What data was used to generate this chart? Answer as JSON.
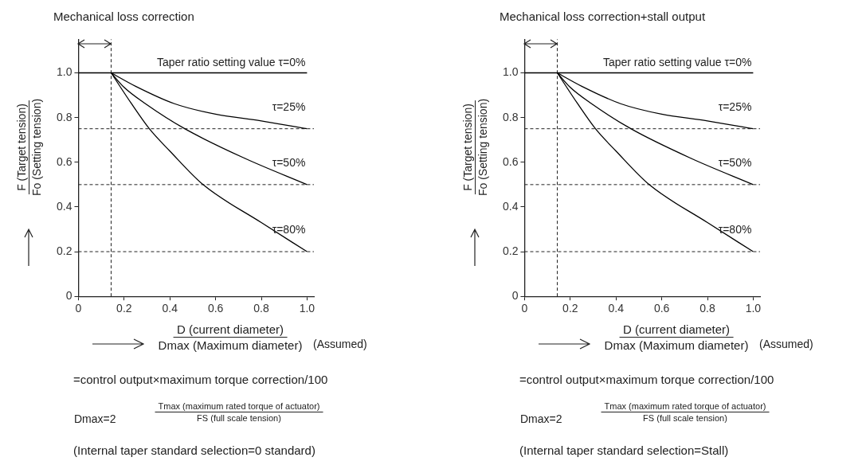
{
  "chart_data": [
    {
      "type": "line",
      "title": "Mechanical loss correction",
      "xlabel": "D (current diameter)\nDmax (Maximum diameter)",
      "ylabel": "F (Target tension)\nFo (Setting tension)",
      "annotations": [
        "(Assumed)",
        "=control output×maximum torque correction/100",
        "Dmax=2",
        "Tmax (maximum rated torque of actuator)\nFS (full scale tension)",
        "(Internal taper standard selection=0 standard)"
      ],
      "xlim": [
        0,
        1.03
      ],
      "ylim": [
        0,
        1.15
      ],
      "xticks": [
        0,
        0.2,
        0.4,
        0.6,
        0.8,
        {
          "value": 1,
          "label": "1.0"
        }
      ],
      "yticks": [
        0,
        0.2,
        0.4,
        0.6,
        0.8,
        {
          "value": 1,
          "label": "1.0"
        }
      ],
      "grid": false,
      "marker": "none",
      "line_style": "solid",
      "ref_lines": [
        {
          "axis": "x",
          "value": 0.143,
          "line_style": "dashed"
        },
        {
          "axis": "y",
          "value": 0.75,
          "line_style": "dashed"
        },
        {
          "axis": "y",
          "value": 0.5,
          "line_style": "dashed"
        },
        {
          "axis": "y",
          "value": 0.2,
          "line_style": "dashed"
        }
      ],
      "series": [
        {
          "name": "Taper ratio setting value τ=0%",
          "color": "#000000",
          "x": [
            0,
            1
          ],
          "values": [
            1,
            1
          ]
        },
        {
          "name": "τ=25%",
          "color": "#000000",
          "x": [
            0.143,
            0.25,
            0.42,
            0.6,
            0.8,
            1
          ],
          "values": [
            1,
            0.94,
            0.862,
            0.815,
            0.785,
            0.75
          ]
        },
        {
          "name": "τ=50%",
          "color": "#000000",
          "x": [
            0.143,
            0.2,
            0.293,
            0.465,
            0.729,
            1
          ],
          "values": [
            1,
            0.935,
            0.862,
            0.75,
            0.617,
            0.5
          ]
        },
        {
          "name": "τ=80%",
          "color": "#000000",
          "x": [
            0.143,
            0.232,
            0.31,
            0.4,
            0.545,
            0.8,
            1
          ],
          "values": [
            1,
            0.862,
            0.75,
            0.65,
            0.5,
            0.33,
            0.2
          ]
        }
      ]
    },
    {
      "type": "line",
      "title": "Mechanical loss correction+stall output",
      "xlabel": "D (current diameter)\nDmax (Maximum diameter)",
      "ylabel": "F (Target tension)\nFo (Setting tension)",
      "annotations": [
        "(Assumed)",
        "=control output×maximum torque correction/100",
        "Dmax=2",
        "Tmax (maximum rated torque of actuator)\nFS (full scale tension)",
        "(Internal taper standard selection=Stall)"
      ],
      "xlim": [
        0,
        1.03
      ],
      "ylim": [
        0,
        1.15
      ],
      "xticks": [
        0,
        0.2,
        0.4,
        0.6,
        0.8,
        {
          "value": 1,
          "label": "1.0"
        }
      ],
      "yticks": [
        0,
        0.2,
        0.4,
        0.6,
        0.8,
        {
          "value": 1,
          "label": "1.0"
        }
      ],
      "grid": false,
      "marker": "none",
      "line_style": "solid",
      "ref_lines": [
        {
          "axis": "x",
          "value": 0.143,
          "line_style": "dashed"
        },
        {
          "axis": "y",
          "value": 0.75,
          "line_style": "dashed"
        },
        {
          "axis": "y",
          "value": 0.5,
          "line_style": "dashed"
        },
        {
          "axis": "y",
          "value": 0.2,
          "line_style": "dashed"
        }
      ],
      "series": [
        {
          "name": "Taper ratio setting value τ=0%",
          "color": "#000000",
          "x": [
            0,
            1
          ],
          "values": [
            1,
            1
          ]
        },
        {
          "name": "τ=25%",
          "color": "#000000",
          "x": [
            0.143,
            0.25,
            0.42,
            0.6,
            0.8,
            1
          ],
          "values": [
            1,
            0.94,
            0.862,
            0.815,
            0.785,
            0.75
          ]
        },
        {
          "name": "τ=50%",
          "color": "#000000",
          "x": [
            0.143,
            0.2,
            0.293,
            0.465,
            0.729,
            1
          ],
          "values": [
            1,
            0.935,
            0.862,
            0.75,
            0.617,
            0.5
          ]
        },
        {
          "name": "τ=80%",
          "color": "#000000",
          "x": [
            0.143,
            0.232,
            0.31,
            0.4,
            0.545,
            0.8,
            1
          ],
          "values": [
            1,
            0.862,
            0.75,
            0.65,
            0.5,
            0.33,
            0.2
          ]
        }
      ]
    }
  ]
}
